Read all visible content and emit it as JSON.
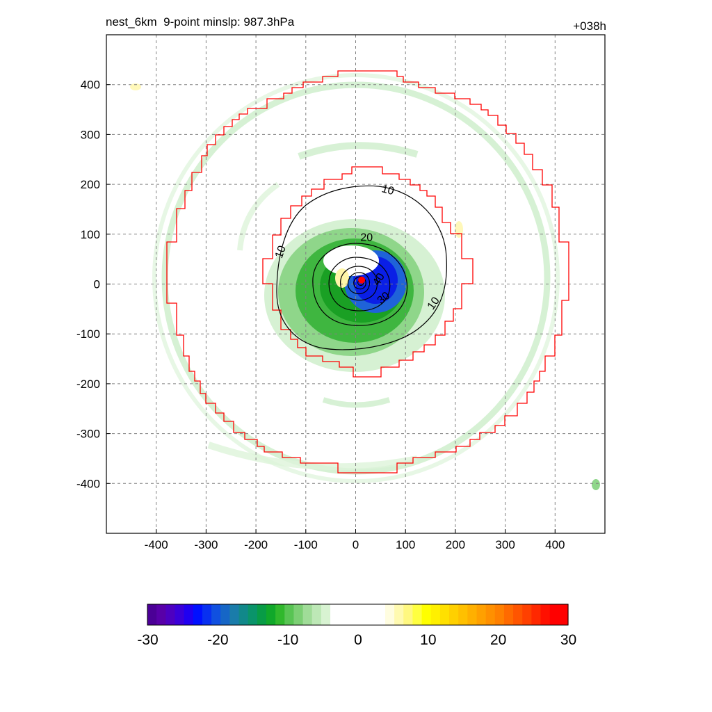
{
  "header": {
    "title": "nest_6km  9-point minslp: 987.3hPa",
    "time_label": "+038h"
  },
  "chart_data": {
    "type": "heatmap",
    "title": "nest_6km  9-point minslp: 987.3hPa",
    "subtitle": "+038h",
    "xlabel": "",
    "ylabel": "",
    "xlim": [
      -500,
      500
    ],
    "ylim": [
      -500,
      500
    ],
    "x_ticks": [
      -400,
      -300,
      -200,
      -100,
      0,
      100,
      200,
      300,
      400
    ],
    "y_ticks": [
      400,
      300,
      200,
      100,
      0,
      -100,
      -200,
      -300,
      -400
    ],
    "grid": true,
    "colorbar": {
      "min": -30,
      "max": 30,
      "tick_labels": [
        "-30",
        "-20",
        "-10",
        "0",
        "10",
        "20",
        "30"
      ],
      "placement": "bottom"
    },
    "contour_labels": [
      {
        "text": "10",
        "x": 65,
        "y": 190,
        "rotate": 15
      },
      {
        "text": "10",
        "x": -152,
        "y": 65,
        "rotate": -70
      },
      {
        "text": "10",
        "x": 155,
        "y": -38,
        "rotate": -55
      },
      {
        "text": "20",
        "x": 22,
        "y": 95,
        "rotate": 0
      },
      {
        "text": "30",
        "x": 55,
        "y": -27,
        "rotate": -40
      },
      {
        "text": "40",
        "x": 45,
        "y": 10,
        "rotate": -60
      }
    ],
    "storm_center": {
      "x": 12,
      "y": 8
    },
    "annotations": []
  }
}
